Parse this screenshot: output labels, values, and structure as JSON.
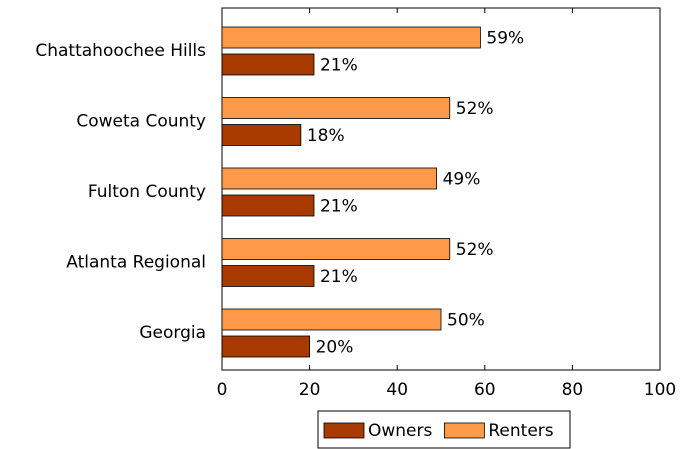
{
  "chart_data": {
    "type": "hbar",
    "categories": [
      "Chattahoochee Hills",
      "Coweta County",
      "Fulton County",
      "Atlanta Regional",
      "Georgia"
    ],
    "series": [
      {
        "name": "Owners",
        "color": "#a83a00",
        "values": [
          21,
          18,
          21,
          21,
          20
        ],
        "value_labels": [
          "21%",
          "18%",
          "21%",
          "21%",
          "20%"
        ]
      },
      {
        "name": "Renters",
        "color": "#ff9a4a",
        "values": [
          59,
          52,
          49,
          52,
          50
        ],
        "value_labels": [
          "59%",
          "52%",
          "49%",
          "52%",
          "50%"
        ]
      }
    ],
    "xlim": [
      0,
      100
    ],
    "xticks": [
      0,
      20,
      40,
      60,
      80,
      100
    ],
    "legend": "bottom"
  }
}
